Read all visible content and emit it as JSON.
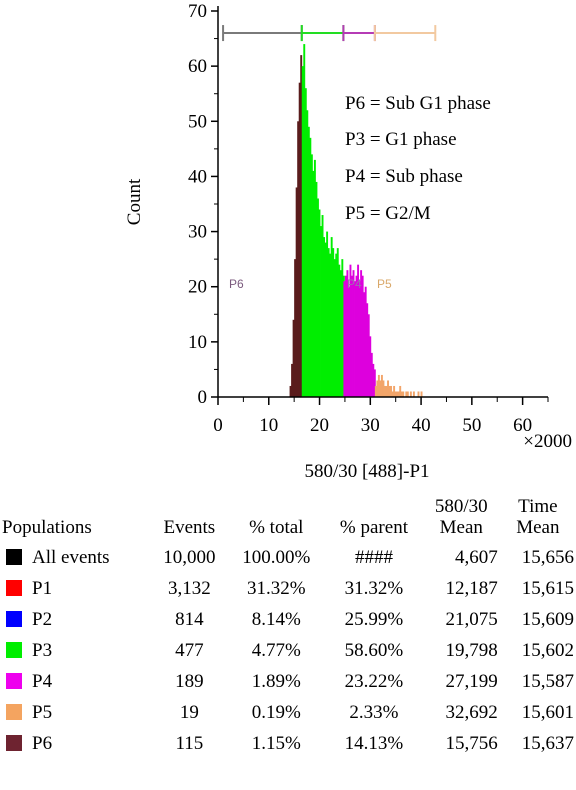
{
  "chart_data": {
    "type": "histogram",
    "xlabel": "580/30 [488]-P1",
    "ylabel": "Count",
    "x_multiplier": "×2000",
    "xlim": [
      0,
      65
    ],
    "ylim": [
      0,
      70
    ],
    "xticks": [
      0,
      10,
      20,
      30,
      40,
      50,
      60
    ],
    "yticks": [
      0,
      10,
      20,
      30,
      40,
      50,
      60,
      70
    ],
    "grid": false,
    "annotations": [
      "P6 = Sub G1 phase",
      "P3 = G1 phase",
      "P4 = Sub phase",
      "P5 = G2/M"
    ],
    "gate_labels": [
      {
        "name": "P6",
        "color": "#7b5a7e"
      },
      {
        "name": "P4",
        "color": "#9f6fb0"
      },
      {
        "name": "P5",
        "color": "#d9a86a"
      }
    ],
    "gates": [
      {
        "name": "P6",
        "range": [
          1,
          16.5
        ],
        "color": "#7a7a7a"
      },
      {
        "name": "P3",
        "range": [
          16.5,
          24.7
        ],
        "color": "#22dd22"
      },
      {
        "name": "P4",
        "range": [
          24.7,
          30.9
        ],
        "color": "#b53bb5"
      },
      {
        "name": "P5",
        "range": [
          30.9,
          42.8
        ],
        "color": "#f2c9a0"
      }
    ],
    "series": [
      {
        "name": "P6",
        "color": "#5a1c1c",
        "x": [
          14.1,
          14.4,
          14.7,
          15.0,
          15.3,
          15.6,
          15.9,
          16.2,
          16.5
        ],
        "y": [
          2,
          6,
          14,
          25,
          38,
          50,
          57,
          62,
          48
        ]
      },
      {
        "name": "P3",
        "color": "#00ee00",
        "x": [
          16.5,
          16.8,
          17.1,
          17.4,
          17.7,
          18.0,
          18.3,
          18.6,
          18.9,
          19.2,
          19.5,
          19.8,
          20.1,
          20.4,
          20.7,
          21.0,
          21.3,
          21.6,
          21.9,
          22.2,
          22.5,
          22.8,
          23.1,
          23.4,
          23.7,
          24.0,
          24.3,
          24.6
        ],
        "y": [
          60,
          64,
          56,
          52,
          49,
          47,
          44,
          41,
          43,
          39,
          36,
          34,
          31,
          33,
          29,
          28,
          30,
          27,
          26,
          29,
          27,
          25,
          26,
          27,
          24,
          23,
          25,
          22
        ]
      },
      {
        "name": "P4",
        "color": "#dd00dd",
        "x": [
          24.7,
          25.0,
          25.3,
          25.6,
          25.9,
          26.2,
          26.5,
          26.8,
          27.1,
          27.4,
          27.7,
          28.0,
          28.3,
          28.6,
          28.9,
          29.2,
          29.5,
          29.8,
          30.1,
          30.4,
          30.7
        ],
        "y": [
          21,
          22,
          23,
          20,
          24,
          22,
          23,
          21,
          22,
          24,
          21,
          23,
          22,
          19,
          20,
          17,
          15,
          11,
          8,
          6,
          5
        ]
      },
      {
        "name": "P5",
        "color": "#f2a56a",
        "x": [
          30.9,
          31.2,
          31.5,
          31.8,
          32.1,
          32.4,
          32.7,
          33.0,
          33.3,
          33.6,
          33.9,
          34.2,
          34.5,
          34.8,
          35.1,
          35.4,
          35.7,
          36.0,
          36.3,
          36.6,
          36.9,
          37.2,
          37.5,
          37.8,
          38.1,
          38.4,
          38.7,
          39.0,
          39.3,
          39.6,
          39.9
        ],
        "y": [
          2,
          3,
          4,
          3,
          4,
          3,
          2,
          2,
          3,
          2,
          2,
          1,
          2,
          1,
          1,
          1,
          2,
          1,
          1,
          0,
          1,
          1,
          0,
          1,
          0,
          1,
          0,
          0,
          1,
          0,
          1
        ]
      }
    ]
  },
  "table": {
    "headers": {
      "populations": "Populations",
      "events": "Events",
      "pct_total": "% total",
      "pct_parent": "% parent",
      "mean_580_line1": "580/30",
      "mean_580_line2": "Mean",
      "time_line1": "Time",
      "time_line2": "Mean"
    },
    "rows": [
      {
        "name": "All events",
        "color": "#000000",
        "events": "10,000",
        "pct_total": "100.00%",
        "pct_parent": "####",
        "mean_580": "4,607",
        "time_mean": "15,656"
      },
      {
        "name": "P1",
        "color": "#ff0000",
        "events": "3,132",
        "pct_total": "31.32%",
        "pct_parent": "31.32%",
        "mean_580": "12,187",
        "time_mean": "15,615"
      },
      {
        "name": "P2",
        "color": "#0000ff",
        "events": "814",
        "pct_total": "8.14%",
        "pct_parent": "25.99%",
        "mean_580": "21,075",
        "time_mean": "15,609"
      },
      {
        "name": "P3",
        "color": "#00ee00",
        "events": "477",
        "pct_total": "4.77%",
        "pct_parent": "58.60%",
        "mean_580": "19,798",
        "time_mean": "15,602"
      },
      {
        "name": "P4",
        "color": "#ee00ee",
        "events": "189",
        "pct_total": "1.89%",
        "pct_parent": "23.22%",
        "mean_580": "27,199",
        "time_mean": "15,587"
      },
      {
        "name": "P5",
        "color": "#f4a460",
        "events": "19",
        "pct_total": "0.19%",
        "pct_parent": "2.33%",
        "mean_580": "32,692",
        "time_mean": "15,601"
      },
      {
        "name": "P6",
        "color": "#6e2330",
        "events": "115",
        "pct_total": "1.15%",
        "pct_parent": "14.13%",
        "mean_580": "15,756",
        "time_mean": "15,637"
      }
    ]
  }
}
